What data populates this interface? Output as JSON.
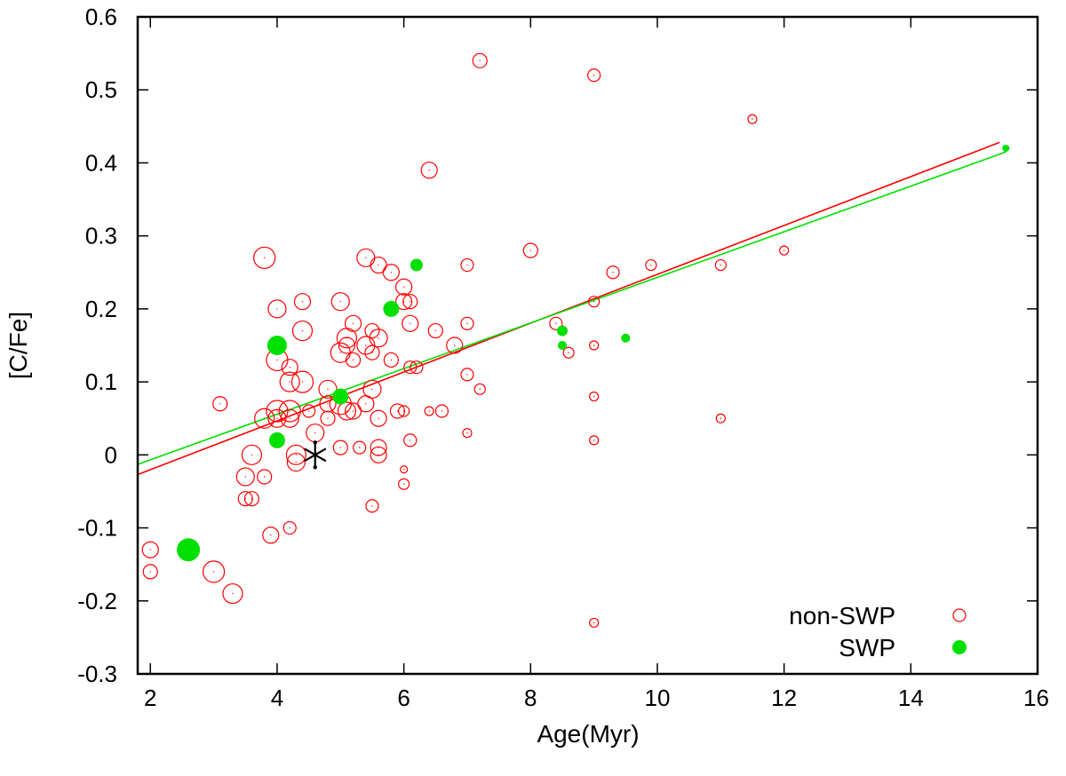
{
  "chart_data": {
    "type": "scatter",
    "xlabel": "Age(Myr)",
    "ylabel": "[C/Fe]",
    "xlim": [
      1.8,
      16
    ],
    "ylim": [
      -0.3,
      0.6
    ],
    "x_ticks": [
      2,
      4,
      6,
      8,
      10,
      12,
      14,
      16
    ],
    "x_tick_labels": [
      "2",
      "4",
      "6",
      "8",
      "10",
      "12",
      "14",
      "16"
    ],
    "y_ticks": [
      -0.3,
      -0.2,
      -0.1,
      0,
      0.1,
      0.2,
      0.3,
      0.4,
      0.5,
      0.6
    ],
    "y_tick_labels": [
      "-0.3",
      "-0.2",
      "-0.1",
      "0",
      "0.1",
      "0.2",
      "0.3",
      "0.4",
      "0.5",
      "0.6"
    ],
    "grid": false,
    "legend_position": "bottom-right",
    "colors": {
      "non_swp": "#ff0000",
      "swp": "#00e000",
      "sun": "#000000"
    },
    "series": [
      {
        "name": "non-SWP",
        "marker": "open-circle",
        "color": "#ff0000",
        "points": [
          [
            2.0,
            -0.13,
            9
          ],
          [
            2.0,
            -0.16,
            8
          ],
          [
            3.0,
            -0.16,
            12
          ],
          [
            3.3,
            -0.19,
            11
          ],
          [
            3.1,
            0.07,
            8
          ],
          [
            3.8,
            0.27,
            12
          ],
          [
            3.6,
            0.0,
            11
          ],
          [
            3.5,
            -0.03,
            10
          ],
          [
            3.5,
            -0.06,
            8
          ],
          [
            3.6,
            -0.06,
            8
          ],
          [
            3.8,
            -0.03,
            8
          ],
          [
            3.9,
            -0.11,
            9
          ],
          [
            4.2,
            -0.1,
            7
          ],
          [
            3.8,
            0.05,
            11
          ],
          [
            4.0,
            0.05,
            10
          ],
          [
            4.0,
            0.06,
            12
          ],
          [
            4.2,
            0.06,
            12
          ],
          [
            4.2,
            0.05,
            10
          ],
          [
            4.0,
            0.13,
            12
          ],
          [
            4.2,
            0.12,
            9
          ],
          [
            4.2,
            0.1,
            11
          ],
          [
            4.4,
            0.1,
            12
          ],
          [
            4.0,
            0.2,
            10
          ],
          [
            4.4,
            0.21,
            9
          ],
          [
            4.4,
            0.17,
            11
          ],
          [
            4.3,
            0.0,
            11
          ],
          [
            4.3,
            -0.01,
            10
          ],
          [
            4.5,
            0.06,
            7
          ],
          [
            4.6,
            0.03,
            10
          ],
          [
            4.8,
            0.09,
            10
          ],
          [
            4.8,
            0.05,
            8
          ],
          [
            4.8,
            0.07,
            9
          ],
          [
            5.0,
            0.21,
            10
          ],
          [
            5.0,
            0.14,
            11
          ],
          [
            5.1,
            0.16,
            11
          ],
          [
            5.1,
            0.15,
            9
          ],
          [
            5.2,
            0.18,
            9
          ],
          [
            5.2,
            0.13,
            8
          ],
          [
            5.0,
            0.07,
            12
          ],
          [
            5.1,
            0.06,
            10
          ],
          [
            5.2,
            0.06,
            9
          ],
          [
            5.0,
            0.01,
            8
          ],
          [
            5.3,
            0.01,
            7
          ],
          [
            5.4,
            0.27,
            10
          ],
          [
            5.6,
            0.26,
            9
          ],
          [
            5.8,
            0.25,
            9
          ],
          [
            5.4,
            0.15,
            10
          ],
          [
            5.5,
            0.17,
            8
          ],
          [
            5.6,
            0.16,
            10
          ],
          [
            5.5,
            0.14,
            8
          ],
          [
            5.4,
            0.07,
            9
          ],
          [
            5.5,
            0.09,
            10
          ],
          [
            5.6,
            0.05,
            9
          ],
          [
            5.6,
            0.01,
            9
          ],
          [
            5.6,
            0.0,
            9
          ],
          [
            5.5,
            -0.07,
            7
          ],
          [
            5.8,
            0.13,
            8
          ],
          [
            5.9,
            0.06,
            8
          ],
          [
            6.0,
            0.06,
            6
          ],
          [
            6.0,
            0.23,
            9
          ],
          [
            6.0,
            0.21,
            9
          ],
          [
            6.1,
            0.21,
            8
          ],
          [
            6.1,
            0.18,
            9
          ],
          [
            6.1,
            0.12,
            7
          ],
          [
            6.2,
            0.12,
            7
          ],
          [
            6.1,
            0.02,
            7
          ],
          [
            6.0,
            -0.04,
            6
          ],
          [
            6.0,
            -0.02,
            4
          ],
          [
            6.4,
            0.39,
            9
          ],
          [
            6.5,
            0.17,
            8
          ],
          [
            6.4,
            0.06,
            5
          ],
          [
            6.6,
            0.06,
            7
          ],
          [
            6.8,
            0.15,
            9
          ],
          [
            7.0,
            0.26,
            7
          ],
          [
            7.0,
            0.18,
            7
          ],
          [
            7.0,
            0.11,
            7
          ],
          [
            7.2,
            0.09,
            6
          ],
          [
            7.0,
            0.03,
            5
          ],
          [
            7.2,
            0.54,
            8
          ],
          [
            8.0,
            0.28,
            8
          ],
          [
            8.4,
            0.18,
            7
          ],
          [
            8.6,
            0.14,
            6
          ],
          [
            9.0,
            0.52,
            7
          ],
          [
            9.0,
            0.21,
            6
          ],
          [
            9.0,
            0.15,
            5
          ],
          [
            9.0,
            0.08,
            5
          ],
          [
            9.0,
            0.02,
            5
          ],
          [
            9.0,
            -0.23,
            5
          ],
          [
            9.3,
            0.25,
            7
          ],
          [
            9.9,
            0.26,
            6
          ],
          [
            11.0,
            0.26,
            6
          ],
          [
            11.0,
            0.05,
            5
          ],
          [
            11.5,
            0.46,
            5
          ],
          [
            12.0,
            0.28,
            5
          ]
        ]
      },
      {
        "name": "SWP",
        "marker": "filled-circle",
        "color": "#00e000",
        "points": [
          [
            2.6,
            -0.13,
            13
          ],
          [
            4.0,
            0.15,
            11
          ],
          [
            4.0,
            0.02,
            9
          ],
          [
            5.0,
            0.08,
            9
          ],
          [
            5.8,
            0.2,
            9
          ],
          [
            6.2,
            0.26,
            7
          ],
          [
            8.5,
            0.17,
            6
          ],
          [
            8.5,
            0.15,
            5
          ],
          [
            9.5,
            0.16,
            5
          ],
          [
            15.5,
            0.42,
            4
          ]
        ]
      }
    ],
    "fit_lines": [
      {
        "color": "#ff0000",
        "x": [
          1.8,
          15.4
        ],
        "y": [
          -0.027,
          0.428
        ]
      },
      {
        "color": "#00e000",
        "x": [
          1.8,
          15.5
        ],
        "y": [
          -0.013,
          0.415
        ]
      }
    ],
    "sun": {
      "x": 4.6,
      "y": 0.0
    }
  }
}
